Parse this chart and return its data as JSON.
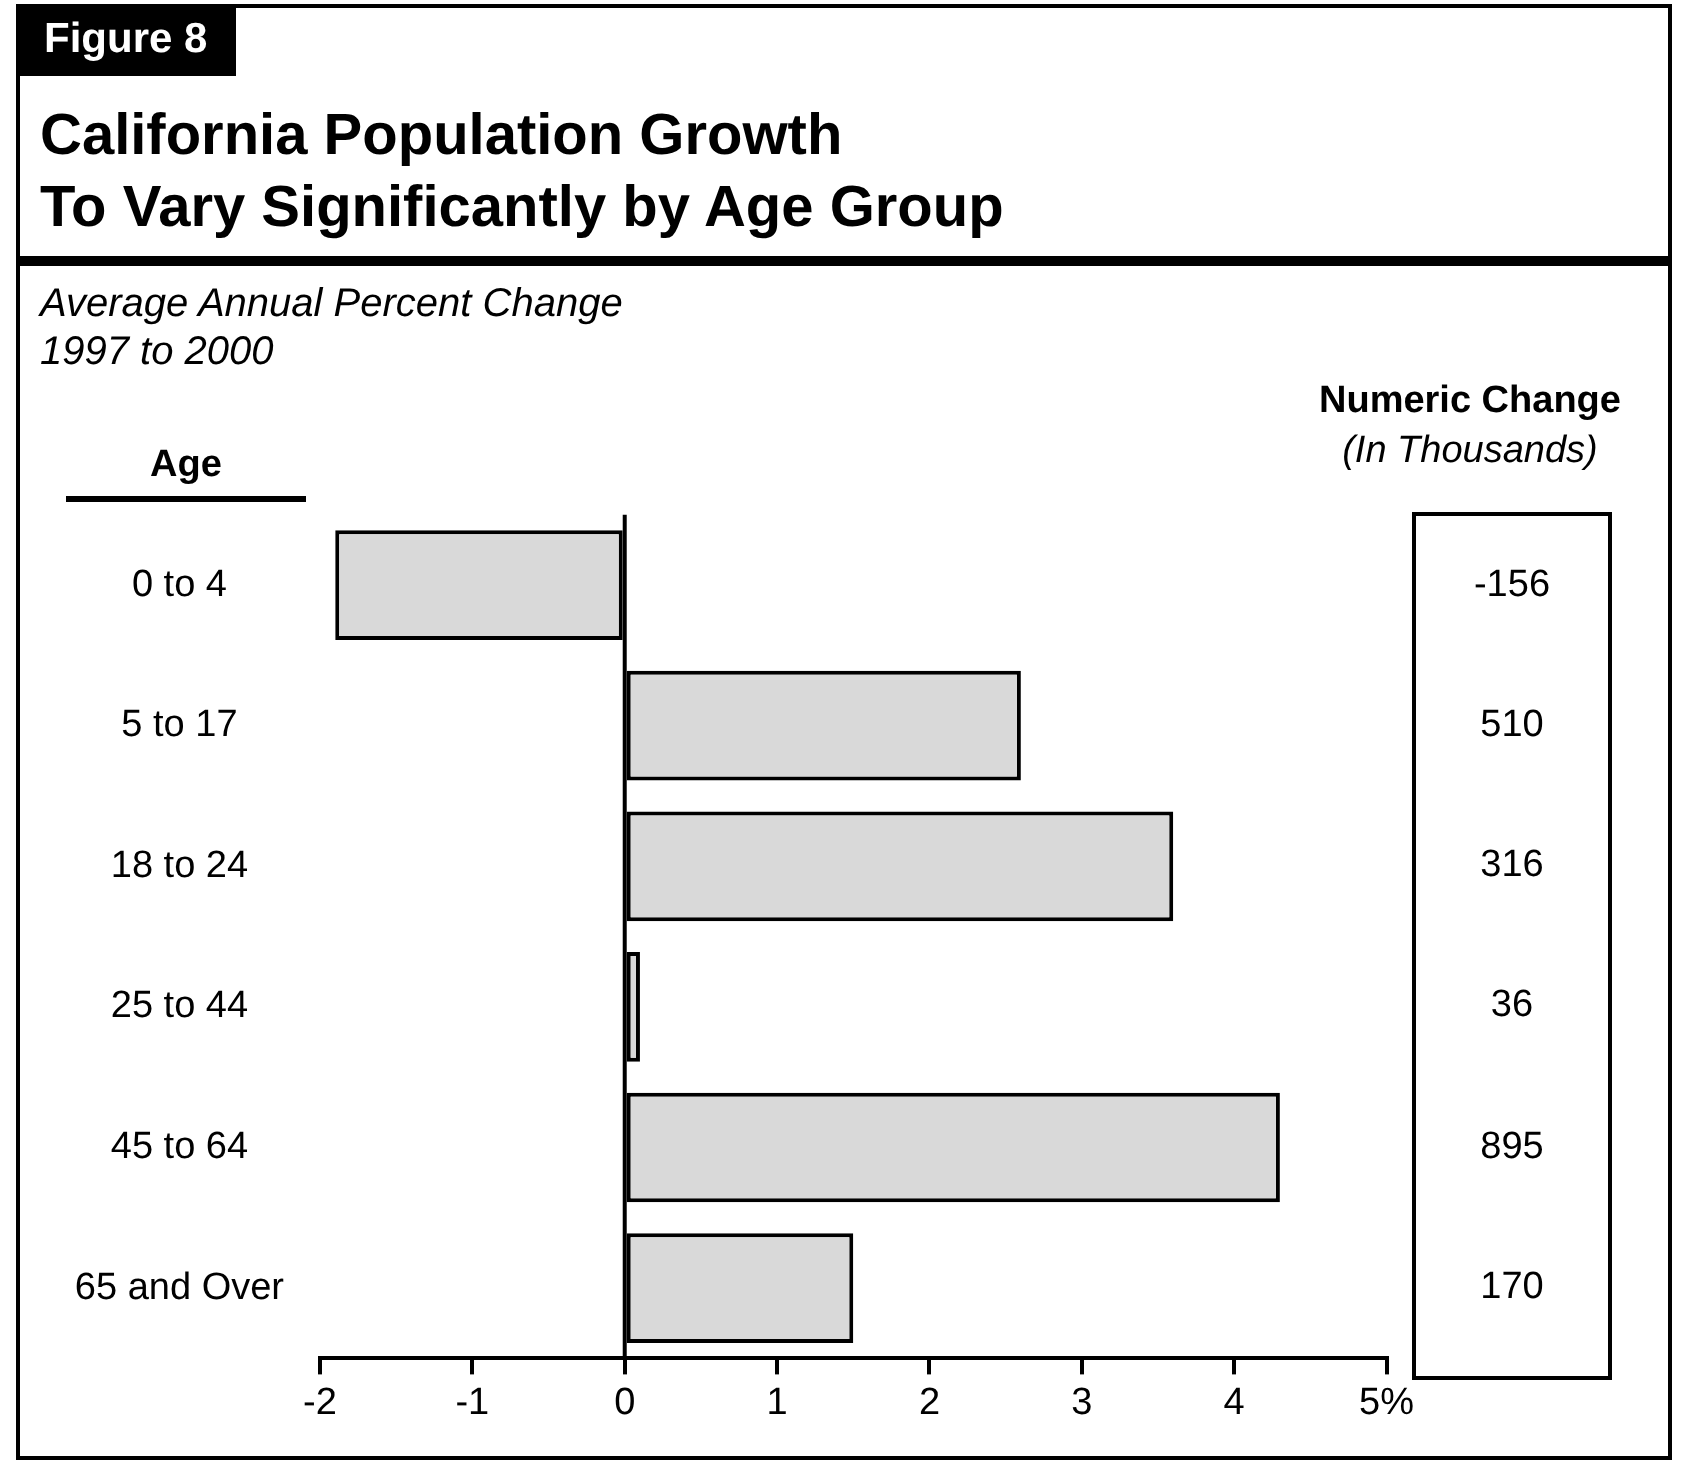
{
  "chart_data": {
    "type": "bar",
    "orientation": "horizontal",
    "title": "California Population Growth\nTo Vary Significantly by Age Group",
    "subtitle": "Average Annual Percent Change\n1997 to 2000",
    "ylabel": "Age",
    "categories": [
      "0 to 4",
      "5 to 17",
      "18 to 24",
      "25 to 44",
      "45 to 64",
      "65 and Over"
    ],
    "values": [
      -1.9,
      2.6,
      3.6,
      0.1,
      4.3,
      1.5
    ],
    "color": "#d9d9d9",
    "xlim": [
      -2,
      5
    ],
    "xticks": [
      -2,
      -1,
      0,
      1,
      2,
      3,
      4,
      {
        "value": 5,
        "label": "5%"
      }
    ],
    "grid": false,
    "legend": false,
    "ref_lines": [
      {
        "axis": "x",
        "value": 0,
        "color": "#000000"
      }
    ],
    "annotations": [
      "Figure 8",
      "Numeric Change",
      "(In Thousands)",
      "-156",
      "510",
      "316",
      "36",
      "895",
      "170"
    ]
  }
}
